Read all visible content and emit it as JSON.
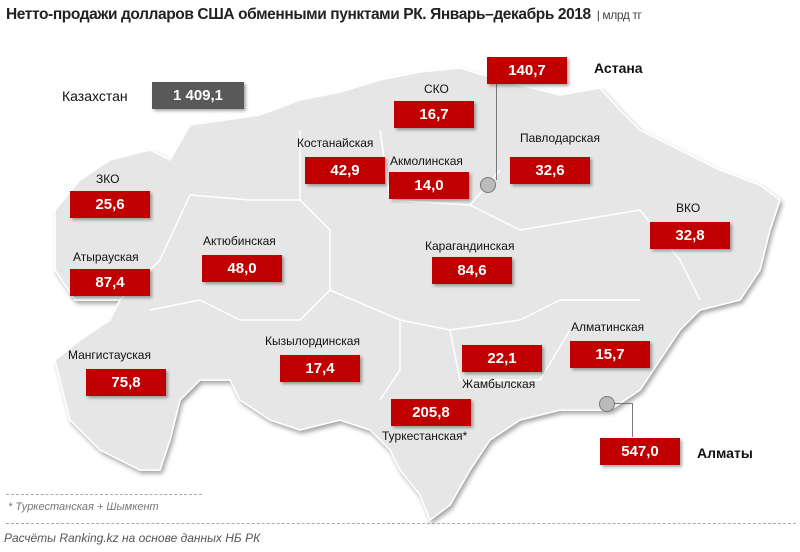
{
  "title": "Нетто-продажи долларов США обменными пунктами РК. Январь–декабрь 2018",
  "unit": "| млрд тг",
  "total": {
    "label": "Казахстан",
    "value": "1 409,1"
  },
  "regions": {
    "sko": {
      "label": "СКО",
      "value": "16,7"
    },
    "astana": {
      "label": "Астана",
      "value": "140,7"
    },
    "kostanay": {
      "label": "Костанайская",
      "value": "42,9"
    },
    "akmola": {
      "label": "Акмолинская",
      "value": "14,0"
    },
    "pavlodar": {
      "label": "Павлодарская",
      "value": "32,6"
    },
    "zko": {
      "label": "ЗКО",
      "value": "25,6"
    },
    "vko": {
      "label": "ВКО",
      "value": "32,8"
    },
    "atyrau": {
      "label": "Атырауская",
      "value": "87,4"
    },
    "aktobe": {
      "label": "Актюбинская",
      "value": "48,0"
    },
    "karaganda": {
      "label": "Карагандинская",
      "value": "84,6"
    },
    "almaty_reg": {
      "label": "Алматинская",
      "value": "15,7"
    },
    "kyzylorda": {
      "label": "Кызылординская",
      "value": "17,4"
    },
    "zhambyl": {
      "label": "Жамбылская",
      "value": "22,1"
    },
    "mangistau": {
      "label": "Мангистауская",
      "value": "75,8"
    },
    "turkestan": {
      "label": "Туркестанская*",
      "value": "205,8"
    },
    "almaty": {
      "label": "Алматы",
      "value": "547,0"
    }
  },
  "footnote": "* Туркестанская + Шымкент",
  "source": "Расчёты Ranking.kz на основе данных  НБ РК",
  "colors": {
    "box": "#c00000",
    "total_box": "#595959",
    "map": "#e6e6e6"
  }
}
